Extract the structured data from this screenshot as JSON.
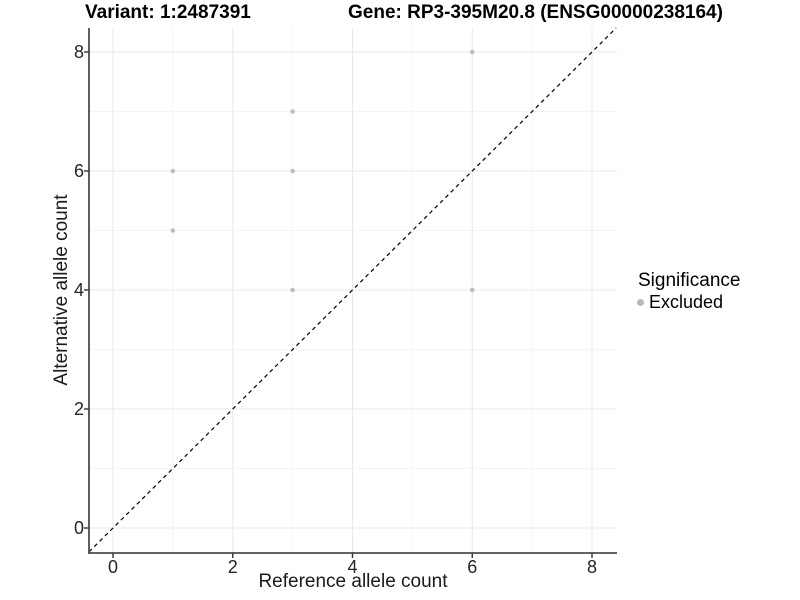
{
  "chart_data": {
    "type": "scatter",
    "title_left": "Variant: 1:2487391",
    "title_right": "Gene: RP3-395M20.8 (ENSG00000238164)",
    "xlabel": "Reference allele count",
    "ylabel": "Alternative allele count",
    "x_ticks": [
      0,
      2,
      4,
      6,
      8
    ],
    "y_ticks": [
      0,
      2,
      4,
      6,
      8
    ],
    "x_minor": [
      1,
      3,
      5,
      7
    ],
    "y_minor": [
      1,
      3,
      5,
      7
    ],
    "xlim": [
      -0.4,
      8.42
    ],
    "ylim": [
      -0.42,
      8.4
    ],
    "grid": "on",
    "reference_line": {
      "type": "identity_y_equals_x",
      "style": "dashed",
      "color": "#000000"
    },
    "series": [
      {
        "name": "Excluded",
        "point_color": "#bebebe",
        "points": [
          [
            1,
            5
          ],
          [
            1,
            6
          ],
          [
            3,
            4
          ],
          [
            3,
            6
          ],
          [
            3,
            7
          ],
          [
            6,
            4
          ],
          [
            6,
            8
          ]
        ]
      }
    ],
    "legend": {
      "title": "Significance",
      "position": "right",
      "items": [
        {
          "label": "Excluded",
          "color": "#b8b8b8"
        }
      ]
    },
    "colors": {
      "grid_major": "#e8e8e8",
      "grid_minor": "#f4f4f4",
      "axis_line": "#4d4d4d",
      "tick_mark": "#333333",
      "background": "#ffffff"
    }
  }
}
